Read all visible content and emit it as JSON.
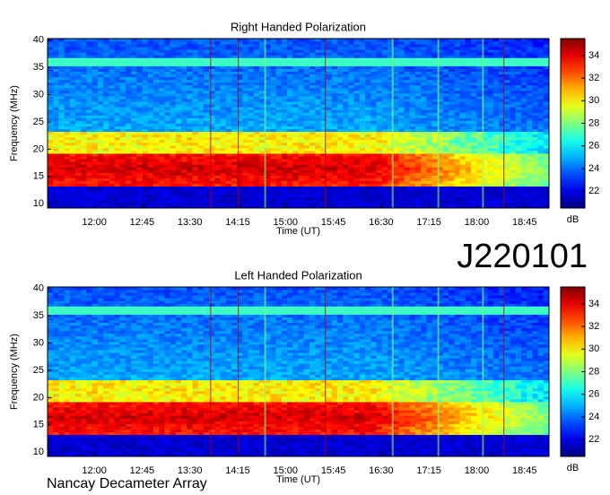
{
  "chart_data": [
    {
      "type": "spectrogram",
      "title": "Right Handed Polarization",
      "xlabel": "Time (UT)",
      "ylabel": "Frequency (MHz)",
      "xlim": [
        676,
        1148
      ],
      "xticks": [
        {
          "value": 720,
          "label": "12:00"
        },
        {
          "value": 765,
          "label": "12:45"
        },
        {
          "value": 810,
          "label": "13:30"
        },
        {
          "value": 855,
          "label": "14:15"
        },
        {
          "value": 900,
          "label": "15:00"
        },
        {
          "value": 945,
          "label": "15:45"
        },
        {
          "value": 990,
          "label": "16:30"
        },
        {
          "value": 1035,
          "label": "17:15"
        },
        {
          "value": 1080,
          "label": "18:00"
        },
        {
          "value": 1125,
          "label": "18:45"
        }
      ],
      "ylim": [
        9.2,
        40.3
      ],
      "yticks": [
        10,
        15,
        20,
        25,
        30,
        35,
        40
      ],
      "colorbar_label": "dB",
      "clim": [
        20.5,
        35.5
      ],
      "cticks": [
        22,
        24,
        26,
        28,
        30,
        32,
        34
      ]
    },
    {
      "type": "spectrogram",
      "title": "Left Handed Polarization",
      "xlabel": "Time (UT)",
      "ylabel": "Frequency (MHz)",
      "xlim": [
        676,
        1148
      ],
      "xticks": [
        {
          "value": 720,
          "label": "12:00"
        },
        {
          "value": 765,
          "label": "12:45"
        },
        {
          "value": 810,
          "label": "13:30"
        },
        {
          "value": 855,
          "label": "14:15"
        },
        {
          "value": 900,
          "label": "15:00"
        },
        {
          "value": 945,
          "label": "15:45"
        },
        {
          "value": 990,
          "label": "16:30"
        },
        {
          "value": 1035,
          "label": "17:15"
        },
        {
          "value": 1080,
          "label": "18:00"
        },
        {
          "value": 1125,
          "label": "18:45"
        }
      ],
      "ylim": [
        9.2,
        40.3
      ],
      "yticks": [
        10,
        15,
        20,
        25,
        30,
        35,
        40
      ],
      "colorbar_label": "dB",
      "clim": [
        20.5,
        35.5
      ],
      "cticks": [
        22,
        24,
        26,
        28,
        30,
        32,
        34
      ]
    }
  ],
  "label": "J220101",
  "footer": "Nancay Decameter Array"
}
